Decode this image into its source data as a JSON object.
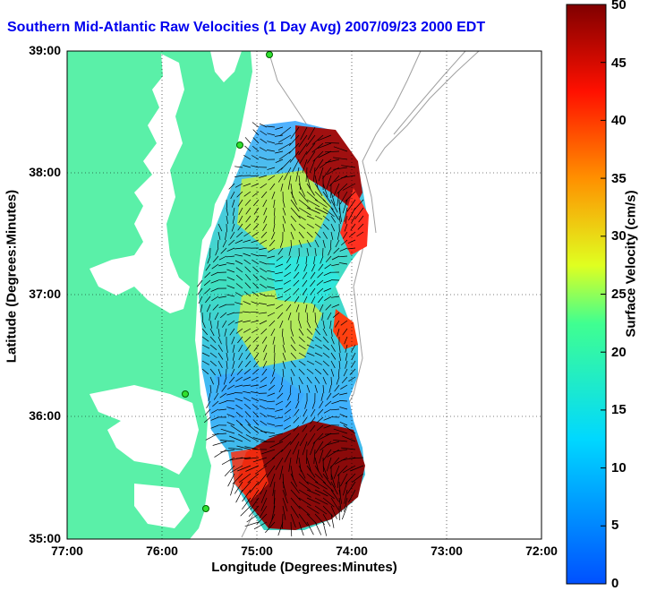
{
  "title": "Southern Mid-Atlantic Raw Velocities (1 Day Avg) 2007/09/23 2000 EDT",
  "x_axis": {
    "label": "Longitude (Degrees:Minutes)",
    "ticks": [
      "77:00",
      "76:00",
      "75:00",
      "74:00",
      "73:00",
      "72:00"
    ]
  },
  "y_axis": {
    "label": "Latitude (Degrees:Minutes)",
    "ticks": [
      "39:00",
      "38:00",
      "37:00",
      "36:00",
      "35:00"
    ]
  },
  "colorbar": {
    "label": "Surface Velocity (cm/s)",
    "ticks": [
      "50",
      "45",
      "40",
      "35",
      "30",
      "25",
      "20",
      "15",
      "10",
      "5",
      "0"
    ],
    "min": 0,
    "max": 50,
    "colors": [
      "#0050ff",
      "#00ffff",
      "#ffff00",
      "#ff0000",
      "#800000"
    ]
  },
  "land_color": "#5af0a8",
  "sites": 4,
  "grid": "dotted"
}
